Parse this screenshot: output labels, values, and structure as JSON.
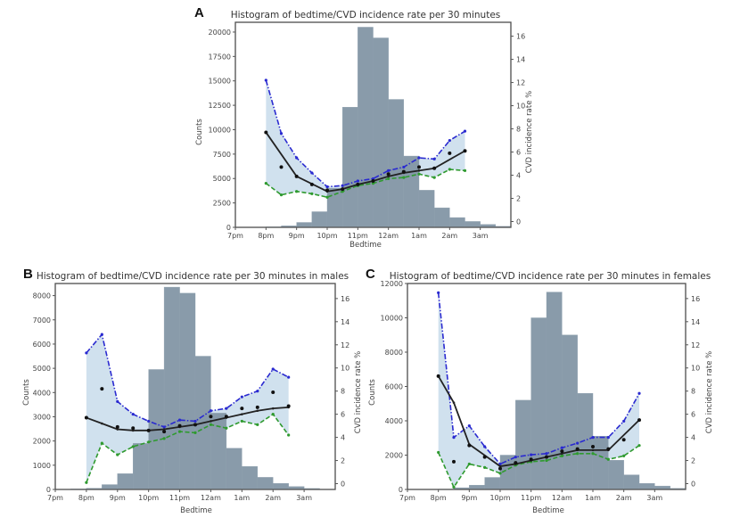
{
  "chart_data": [
    {
      "panel": "A",
      "type": "bar",
      "title": "Histogram of bedtime/CVD incidence rate per 30 minutes",
      "xlabel": "Bedtime",
      "ylabel": "Counts",
      "y2label": "CVD incidence rate %",
      "x_ticks": [
        "7pm",
        "8pm",
        "9pm",
        "10pm",
        "11pm",
        "12am",
        "1am",
        "2am",
        "3am"
      ],
      "xlim": [
        19,
        28
      ],
      "ylim": [
        0,
        21000
      ],
      "y_ticks": [
        0,
        2500,
        5000,
        7500,
        10000,
        12500,
        15000,
        17500,
        20000
      ],
      "y2lim": [
        -0.5,
        17.2
      ],
      "y2_ticks": [
        0,
        2,
        4,
        6,
        8,
        10,
        12,
        14,
        16
      ],
      "bar_color": "#7f93a3",
      "histogram": {
        "bin_starts": [
          19.0,
          19.5,
          20.0,
          20.5,
          21.0,
          21.5,
          22.0,
          22.5,
          23.0,
          23.5,
          24.0,
          24.5,
          25.0,
          25.5,
          26.0,
          26.5,
          27.0,
          27.5
        ],
        "counts": [
          0,
          0,
          50,
          150,
          500,
          1600,
          4000,
          12300,
          20500,
          19400,
          13100,
          7300,
          3800,
          2000,
          1000,
          600,
          300,
          100
        ]
      },
      "series": [
        {
          "name": "upper",
          "color": "#2a2ad0",
          "style": "dashdot",
          "x": [
            20.0,
            20.5,
            21.0,
            21.5,
            22.0,
            22.5,
            23.0,
            23.5,
            24.0,
            24.5,
            25.0,
            25.5,
            26.0,
            26.5
          ],
          "values": [
            12.2,
            7.6,
            5.5,
            4.2,
            3.0,
            3.1,
            3.5,
            3.7,
            4.4,
            4.7,
            5.5,
            5.4,
            7.0,
            7.8
          ]
        },
        {
          "name": "lower",
          "color": "#2f9a2f",
          "style": "dashed",
          "x": [
            20.0,
            20.5,
            21.0,
            21.5,
            22.0,
            22.5,
            23.0,
            23.5,
            24.0,
            24.5,
            25.0,
            25.5,
            26.0,
            26.5
          ],
          "values": [
            3.3,
            2.3,
            2.6,
            2.4,
            2.1,
            2.6,
            3.1,
            3.3,
            3.7,
            3.8,
            4.1,
            3.8,
            4.5,
            4.4
          ]
        },
        {
          "name": "fit",
          "color": "#222222",
          "style": "solid",
          "x": [
            20.0,
            21.0,
            22.0,
            22.5,
            23.0,
            23.5,
            24.0,
            24.5,
            25.0,
            25.5,
            26.5
          ],
          "values": [
            7.7,
            3.9,
            2.6,
            2.8,
            3.2,
            3.5,
            3.9,
            4.2,
            4.4,
            4.6,
            6.1
          ]
        },
        {
          "name": "observed",
          "color": "#111111",
          "style": "points",
          "x": [
            20.0,
            20.5,
            21.0,
            21.5,
            22.0,
            22.5,
            23.0,
            23.5,
            24.0,
            24.5,
            25.0,
            25.5,
            26.0,
            26.5
          ],
          "values": [
            7.7,
            4.7,
            3.9,
            3.2,
            2.7,
            2.8,
            3.2,
            3.5,
            4.1,
            4.3,
            4.7,
            4.6,
            5.9,
            6.1
          ]
        }
      ]
    },
    {
      "panel": "B",
      "type": "bar",
      "title": "Histogram of bedtime/CVD incidence rate per 30 minutes in males",
      "xlabel": "Bedtime",
      "ylabel": "Counts",
      "y2label": "CVD incidence rate %",
      "x_ticks": [
        "7pm",
        "8pm",
        "9pm",
        "10pm",
        "11pm",
        "12am",
        "1am",
        "2am",
        "3am"
      ],
      "xlim": [
        19,
        28
      ],
      "ylim": [
        0,
        8500
      ],
      "y_ticks": [
        0,
        1000,
        2000,
        3000,
        4000,
        5000,
        6000,
        7000,
        8000
      ],
      "y2lim": [
        -0.5,
        17.3
      ],
      "y2_ticks": [
        0,
        2,
        4,
        6,
        8,
        10,
        12,
        14,
        16
      ],
      "bar_color": "#7f93a3",
      "histogram": {
        "bin_starts": [
          19.0,
          19.5,
          20.0,
          20.5,
          21.0,
          21.5,
          22.0,
          22.5,
          23.0,
          23.5,
          24.0,
          24.5,
          25.0,
          25.5,
          26.0,
          26.5,
          27.0,
          27.5
        ],
        "counts": [
          0,
          20,
          50,
          200,
          650,
          1900,
          4950,
          8350,
          8100,
          5500,
          3150,
          1700,
          950,
          500,
          250,
          120,
          40,
          10
        ],
        "_note": "bins as shown"
      },
      "series": [
        {
          "name": "upper",
          "color": "#2a2ad0",
          "style": "dashdot",
          "x": [
            20.0,
            20.5,
            21.0,
            21.5,
            22.0,
            22.5,
            23.0,
            23.5,
            24.0,
            24.5,
            25.0,
            25.5,
            26.0,
            26.5
          ],
          "values": [
            11.3,
            12.9,
            7.1,
            6.0,
            5.4,
            4.9,
            5.5,
            5.4,
            6.3,
            6.5,
            7.5,
            8.0,
            9.9,
            9.2
          ]
        },
        {
          "name": "lower",
          "color": "#2f9a2f",
          "style": "dashed",
          "x": [
            20.0,
            20.5,
            21.0,
            21.5,
            22.0,
            22.5,
            23.0,
            23.5,
            24.0,
            24.5,
            25.0,
            25.5,
            26.0,
            26.5
          ],
          "values": [
            0.1,
            3.5,
            2.5,
            3.2,
            3.6,
            3.9,
            4.5,
            4.4,
            5.1,
            4.8,
            5.4,
            5.1,
            6.0,
            4.2
          ]
        },
        {
          "name": "fit",
          "color": "#222222",
          "style": "solid",
          "x": [
            20.0,
            20.5,
            21.0,
            21.5,
            22.0,
            22.5,
            23.0,
            23.5,
            24.0,
            24.5,
            25.0,
            25.5,
            26.0,
            26.5
          ],
          "values": [
            5.7,
            5.2,
            4.7,
            4.6,
            4.6,
            4.7,
            4.9,
            5.1,
            5.4,
            5.7,
            6.0,
            6.3,
            6.5,
            6.6
          ]
        },
        {
          "name": "observed",
          "color": "#111111",
          "style": "points",
          "x": [
            20.0,
            20.5,
            21.0,
            21.5,
            22.0,
            22.5,
            23.0,
            23.5,
            24.0,
            24.5,
            25.0,
            25.5,
            26.0,
            26.5
          ],
          "values": [
            5.7,
            8.2,
            4.9,
            4.8,
            4.6,
            4.5,
            5.0,
            5.1,
            5.8,
            5.8,
            6.5,
            6.6,
            7.9,
            6.7
          ]
        }
      ]
    },
    {
      "panel": "C",
      "type": "bar",
      "title": "Histogram of bedtime/CVD incidence rate per 30 minutes in females",
      "xlabel": "Bedtime",
      "ylabel": "Counts",
      "y2label": "CVD incidence rate %",
      "x_ticks": [
        "7pm",
        "8pm",
        "9pm",
        "10pm",
        "11pm",
        "12am",
        "1am",
        "2am",
        "3am"
      ],
      "xlim": [
        19,
        28
      ],
      "ylim": [
        0,
        12000
      ],
      "y_ticks": [
        0,
        2000,
        4000,
        6000,
        8000,
        10000,
        12000
      ],
      "y2lim": [
        -0.5,
        17.3
      ],
      "y2_ticks": [
        0,
        2,
        4,
        6,
        8,
        10,
        12,
        14,
        16
      ],
      "bar_color": "#7f93a3",
      "histogram": {
        "bin_starts": [
          19.0,
          19.5,
          20.0,
          20.5,
          21.0,
          21.5,
          22.0,
          22.5,
          23.0,
          23.5,
          24.0,
          24.5,
          25.0,
          25.5,
          26.0,
          26.5,
          27.0,
          27.5
        ],
        "counts": [
          0,
          0,
          20,
          100,
          250,
          700,
          2000,
          5200,
          10000,
          11500,
          9000,
          5600,
          3100,
          1700,
          850,
          350,
          200,
          60
        ]
      },
      "series": [
        {
          "name": "upper",
          "color": "#2a2ad0",
          "style": "dashdot",
          "x": [
            20.0,
            20.5,
            21.0,
            21.5,
            22.0,
            22.5,
            23.0,
            23.5,
            24.0,
            24.5,
            25.0,
            25.5,
            26.0,
            26.5
          ],
          "values": [
            16.5,
            4.0,
            5.0,
            3.2,
            1.7,
            2.3,
            2.5,
            2.6,
            3.1,
            3.5,
            4.0,
            4.0,
            5.4,
            7.8
          ]
        },
        {
          "name": "lower",
          "color": "#2f9a2f",
          "style": "dashed",
          "x": [
            20.0,
            20.5,
            21.0,
            21.5,
            22.0,
            22.5,
            23.0,
            23.5,
            24.0,
            24.5,
            25.0,
            25.5,
            26.0,
            26.5
          ],
          "values": [
            2.7,
            -0.3,
            1.7,
            1.4,
            0.9,
            1.6,
            1.9,
            2.0,
            2.4,
            2.6,
            2.6,
            2.1,
            2.4,
            3.3
          ]
        },
        {
          "name": "fit",
          "color": "#222222",
          "style": "solid",
          "x": [
            20.0,
            20.5,
            21.0,
            22.0,
            22.5,
            23.0,
            23.5,
            24.0,
            24.5,
            25.0,
            25.5,
            26.5
          ],
          "values": [
            9.3,
            7.0,
            3.4,
            1.5,
            1.7,
            2.0,
            2.3,
            2.6,
            2.9,
            2.9,
            2.9,
            5.5
          ]
        },
        {
          "name": "observed",
          "color": "#111111",
          "style": "points",
          "x": [
            20.0,
            20.5,
            21.0,
            21.5,
            22.0,
            22.5,
            23.0,
            23.5,
            24.0,
            24.5,
            25.0,
            25.5,
            26.0,
            26.5
          ],
          "values": [
            9.3,
            1.9,
            3.3,
            2.3,
            1.3,
            1.8,
            2.1,
            2.3,
            2.8,
            3.0,
            3.2,
            3.0,
            3.8,
            5.5
          ]
        }
      ]
    }
  ]
}
